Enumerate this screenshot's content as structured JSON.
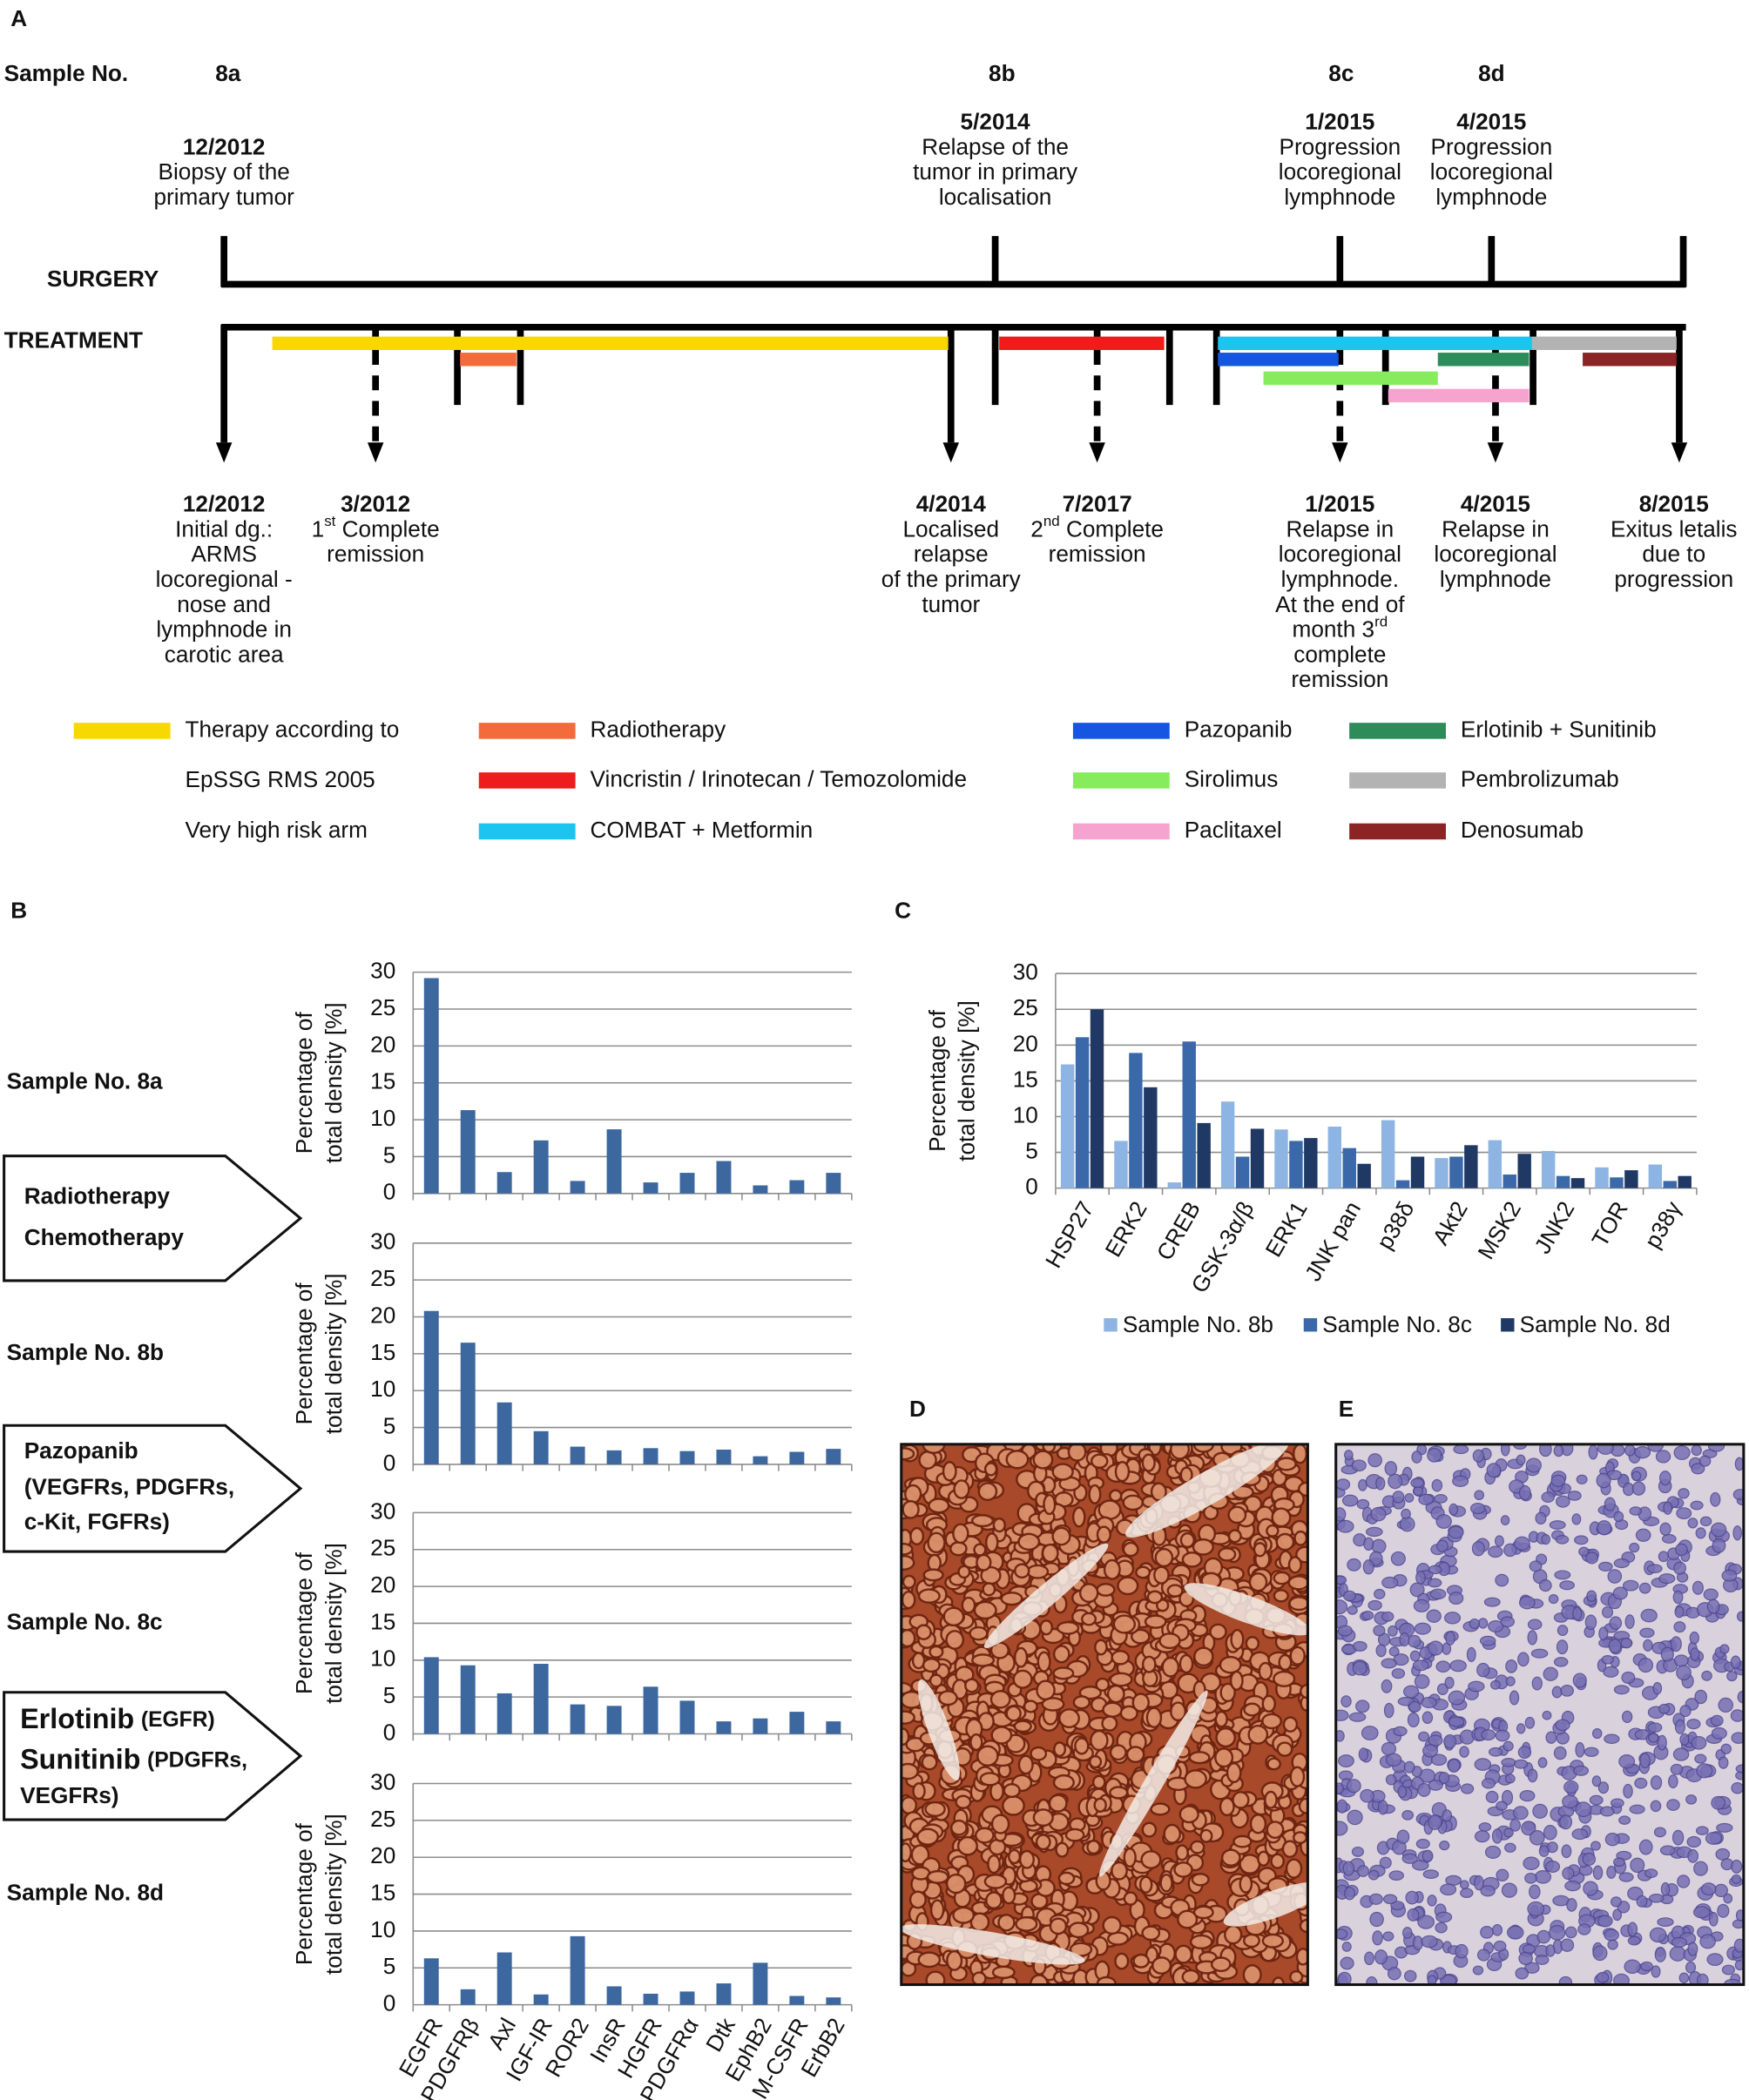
{
  "panel_labels": [
    "A",
    "B",
    "C",
    "D",
    "E"
  ],
  "timeline": {
    "sample_heading": "Sample No.",
    "samples": [
      "8a",
      "8b",
      "8c",
      "8d"
    ],
    "surgery_label": "SURGERY",
    "treatment_label": "TREATMENT",
    "surgery_events": [
      {
        "date": "12/2012",
        "lines": [
          "Biopsy of the",
          "primary tumor"
        ]
      },
      {
        "date": "5/2014",
        "lines": [
          "Relapse of the",
          "tumor in primary",
          "localisation"
        ]
      },
      {
        "date": "1/2015",
        "lines": [
          "Progression",
          "locoregional",
          "lymphnode"
        ]
      },
      {
        "date": "4/2015",
        "lines": [
          "Progression",
          "locoregional",
          "lymphnode"
        ]
      }
    ],
    "treatment_events": [
      {
        "date": "12/2012",
        "lines": [
          "Initial dg.:",
          "ARMS",
          "locoregional -",
          "nose and",
          "lymphnode in",
          "carotic area"
        ]
      },
      {
        "date": "3/2012",
        "lines": [
          {
            "base": "1",
            "sup": "st",
            "rest": " Complete"
          },
          "remission"
        ]
      },
      {
        "date": "4/2014",
        "lines": [
          "Localised",
          "relapse",
          "of the primary",
          "tumor"
        ]
      },
      {
        "date": "7/2017",
        "lines": [
          {
            "base": "2",
            "sup": "nd",
            "rest": " Complete"
          },
          "remission"
        ]
      },
      {
        "date": "1/2015",
        "lines": [
          "Relapse in",
          "locoregional",
          "lymphnode.",
          "At the end of",
          {
            "base": "month 3",
            "sup": "rd"
          },
          "complete",
          "remission"
        ]
      },
      {
        "date": "4/2015",
        "lines": [
          "Relapse in",
          "locoregional",
          "lymphnode"
        ]
      },
      {
        "date": "8/2015",
        "lines": [
          "Exitus letalis",
          "due to",
          "progression"
        ]
      }
    ]
  },
  "legend": [
    {
      "color": "#f7d800",
      "lines": [
        "Therapy according to",
        "EpSSG RMS 2005",
        "Very high risk arm"
      ]
    },
    {
      "color": "#f26b3a",
      "lines": [
        "Radiotherapy"
      ]
    },
    {
      "color": "#ee1c1c",
      "lines": [
        "Vincristin / Irinotecan / Temozolomide"
      ]
    },
    {
      "color": "#1cc4f0",
      "lines": [
        "COMBAT + Metformin"
      ]
    },
    {
      "color": "#1456e0",
      "lines": [
        "Pazopanib"
      ]
    },
    {
      "color": "#86ec5e",
      "lines": [
        "Sirolimus"
      ]
    },
    {
      "color": "#f7a3cf",
      "lines": [
        "Paclitaxel"
      ]
    },
    {
      "color": "#2e8b5a",
      "lines": [
        "Erlotinib + Sunitinib"
      ]
    },
    {
      "color": "#b3b3b3",
      "lines": [
        "Pembrolizumab"
      ]
    },
    {
      "color": "#8b2525",
      "lines": [
        "Denosumab"
      ]
    }
  ],
  "panel_b": {
    "interventions": [
      {
        "drugs": [
          "Radiotherapy",
          "Chemotherapy"
        ],
        "targets": []
      },
      {
        "drugs": [
          "Pazopanib"
        ],
        "targets": [
          "(VEGFRs, PDGFRs,",
          "c-Kit, FGFRs)"
        ]
      },
      {
        "drugs": [
          "Erlotinib",
          "Sunitinib"
        ],
        "targets": [
          "(EGFR)",
          "(PDGFRs,",
          "VEGFRs)"
        ]
      }
    ]
  },
  "chart_data": [
    {
      "type": "bar",
      "title": "Sample No. 8a",
      "y_label": [
        "Percentage of",
        "total density [%]"
      ],
      "values": [
        29.2,
        11.3,
        2.9,
        7.2,
        1.7,
        8.7,
        1.5,
        2.8,
        4.4,
        1.1,
        1.8,
        2.8
      ],
      "color": "#3c679f",
      "ylim": [
        0,
        30
      ],
      "yticks": [
        0,
        5,
        10,
        15,
        20,
        25,
        30
      ],
      "grid": true
    },
    {
      "type": "bar",
      "title": "Sample No. 8b",
      "y_label": [
        "Percentage of",
        "total density [%]"
      ],
      "values": [
        20.8,
        16.5,
        8.4,
        4.5,
        2.4,
        1.9,
        2.2,
        1.8,
        2.0,
        1.1,
        1.7,
        2.1
      ],
      "color": "#3c679f",
      "ylim": [
        0,
        30
      ],
      "yticks": [
        0,
        5,
        10,
        15,
        20,
        25,
        30
      ],
      "grid": true
    },
    {
      "type": "bar",
      "title": "Sample No. 8c",
      "y_label": [
        "Percentage of",
        "total density [%]"
      ],
      "values": [
        10.4,
        9.3,
        5.5,
        9.5,
        4.0,
        3.8,
        6.4,
        4.5,
        1.7,
        2.1,
        3.0,
        1.7
      ],
      "color": "#3c679f",
      "ylim": [
        0,
        30
      ],
      "yticks": [
        0,
        5,
        10,
        15,
        20,
        25,
        30
      ],
      "grid": true
    },
    {
      "type": "bar",
      "title": "Sample No. 8d",
      "y_label": [
        "Percentage of",
        "total density [%]"
      ],
      "categories": [
        "EGFR",
        "PDGFRβ",
        "Axl",
        "IGF-IR",
        "ROR2",
        "InsR",
        "HGFR",
        "PDGFRα",
        "Dtk",
        "EphB2",
        "M-CSFR",
        "ErbB2"
      ],
      "values": [
        6.3,
        2.1,
        7.1,
        1.4,
        9.3,
        2.5,
        1.5,
        1.8,
        2.9,
        5.7,
        1.2,
        1.0
      ],
      "color": "#3c679f",
      "ylim": [
        0,
        30
      ],
      "yticks": [
        0,
        5,
        10,
        15,
        20,
        25,
        30
      ],
      "grid": true
    },
    {
      "type": "grouped_bar",
      "y_label": [
        "Percentage of",
        "total density [%]"
      ],
      "categories": [
        "HSP27",
        "ERK2",
        "CREB",
        "GSK-3α/β",
        "ERK1",
        "JNK pan",
        "p38δ",
        "Akt2",
        "MSK2",
        "JNK2",
        "TOR",
        "p38γ"
      ],
      "series": [
        {
          "name": "Sample No. 8b",
          "color": "#8db4e3",
          "values": [
            17.3,
            6.6,
            0.8,
            12.1,
            8.2,
            8.6,
            9.5,
            4.2,
            6.7,
            5.2,
            2.9,
            3.3
          ]
        },
        {
          "name": "Sample No. 8c",
          "color": "#3a68a8",
          "values": [
            21.1,
            18.9,
            20.5,
            4.4,
            6.6,
            5.6,
            1.1,
            4.4,
            1.9,
            1.7,
            1.5,
            1.0
          ]
        },
        {
          "name": "Sample No. 8d",
          "color": "#1f3864",
          "values": [
            25.0,
            14.1,
            9.1,
            8.3,
            7.0,
            3.4,
            4.4,
            6.0,
            4.8,
            1.4,
            2.5,
            1.7
          ]
        }
      ],
      "ylim": [
        0,
        30
      ],
      "yticks": [
        0,
        5,
        10,
        15,
        20,
        25,
        30
      ],
      "grid": true,
      "legend": "bottom"
    }
  ]
}
